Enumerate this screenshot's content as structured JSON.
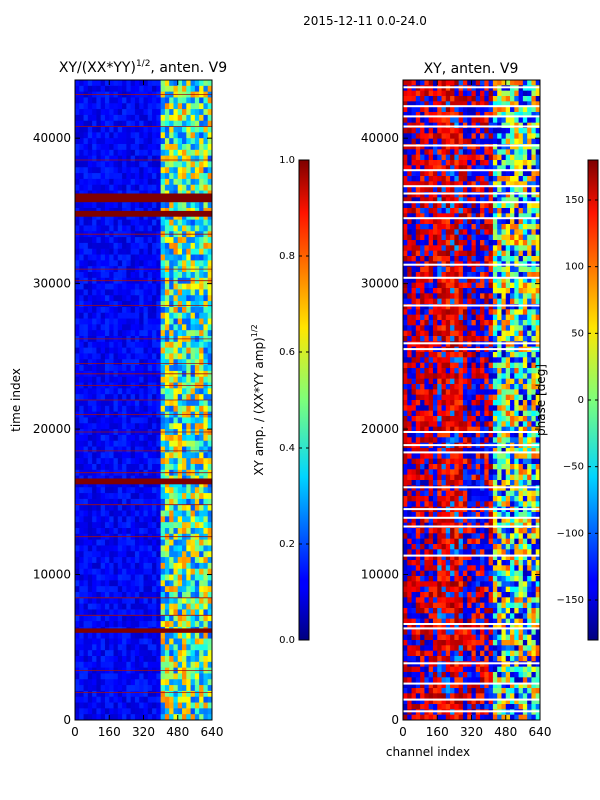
{
  "page_title": "2015-12-11 0.0-24.0",
  "chart_data": [
    {
      "type": "heatmap",
      "title": "XY/(XX*YY)",
      "title_superscript": "1/2",
      "title_suffix": ", anten. V9",
      "xlabel": "",
      "ylabel": "time index",
      "xlim": [
        0,
        640
      ],
      "ylim": [
        0,
        44000
      ],
      "xticks": [
        0,
        160,
        320,
        480,
        640
      ],
      "yticks": [
        0,
        10000,
        20000,
        30000,
        40000
      ],
      "colorbar": {
        "label": "XY amp. / (XX*YY amp)",
        "label_superscript": "1/2",
        "range": [
          0.0,
          1.0
        ],
        "ticks": [
          "0.0",
          "0.2",
          "0.4",
          "0.6",
          "0.8",
          "1.0"
        ],
        "tick_values": [
          0.0,
          0.2,
          0.4,
          0.6,
          0.8,
          1.0
        ]
      },
      "colormap": "jet",
      "features": {
        "background_value": 0.12,
        "bright_channel_band": [
          400,
          640
        ],
        "flagged_time_bands": [
          [
            6000,
            6300
          ],
          [
            16200,
            16600
          ],
          [
            34600,
            35000
          ],
          [
            35600,
            36200
          ]
        ],
        "thin_flag_lines": [
          1900,
          3400,
          7200,
          8400,
          12600,
          14800,
          17000,
          18500,
          19800,
          21000,
          22000,
          23000,
          23800,
          24500,
          26200,
          28500,
          30200,
          31000,
          33400,
          38500,
          40800,
          43000
        ]
      }
    },
    {
      "type": "heatmap",
      "title": "XY, anten. V9",
      "xlabel": "channel index",
      "ylabel": "",
      "xlim": [
        0,
        640
      ],
      "ylim": [
        0,
        44000
      ],
      "xticks": [
        0,
        160,
        320,
        480,
        640
      ],
      "yticks": [
        0,
        10000,
        20000,
        30000,
        40000
      ],
      "colorbar": {
        "label": "phase [deg]",
        "range": [
          -180,
          180
        ],
        "ticks": [
          "−150",
          "−100",
          "−50",
          "0",
          "50",
          "100",
          "150"
        ],
        "tick_values": [
          -150,
          -100,
          -50,
          0,
          50,
          100,
          150
        ]
      },
      "colormap": "jet",
      "features": {
        "white_gap_lines": [
          600,
          1400,
          2500,
          3900,
          6300,
          6600,
          11300,
          13300,
          13900,
          14500,
          16000,
          18400,
          18900,
          19800,
          25500,
          25900,
          28500,
          30400,
          31300,
          34500,
          35600,
          36200,
          36700,
          37800,
          39500,
          40800,
          41500,
          42200,
          43500
        ]
      }
    }
  ]
}
